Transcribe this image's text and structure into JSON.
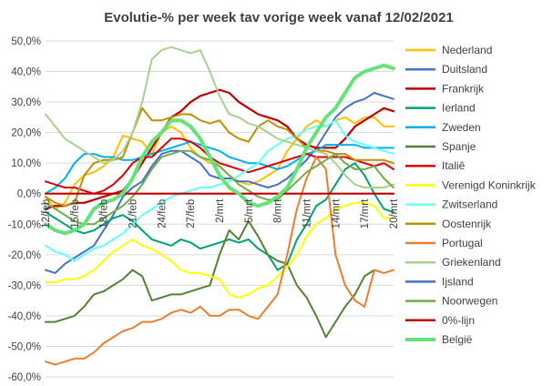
{
  "chart_data": {
    "type": "line",
    "title": "Evolutie-% per week tav vorige week vanaf 12/02/2021",
    "ylim": [
      -60,
      50
    ],
    "yticks": [
      50,
      40,
      30,
      20,
      10,
      0,
      -10,
      -20,
      -30,
      -40,
      -50,
      -60
    ],
    "ytick_labels": [
      "50,0%",
      "40,0%",
      "30,0%",
      "20,0%",
      "10,0%",
      "0,0%",
      "-10,0%",
      "-20,0%",
      "-30,0%",
      "-40,0%",
      "-50,0%",
      "-60,0%"
    ],
    "x_count": 37,
    "x_tick_labels": [
      {
        "index": 0,
        "label": "12/feb"
      },
      {
        "index": 3,
        "label": "15/feb"
      },
      {
        "index": 6,
        "label": "18/feb"
      },
      {
        "index": 9,
        "label": "21/feb"
      },
      {
        "index": 12,
        "label": "24/feb"
      },
      {
        "index": 15,
        "label": "27/feb"
      },
      {
        "index": 18,
        "label": "2/mrt"
      },
      {
        "index": 21,
        "label": "5/mrt"
      },
      {
        "index": 24,
        "label": "8/mrt"
      },
      {
        "index": 27,
        "label": "11/mrt"
      },
      {
        "index": 30,
        "label": "14/mrt"
      },
      {
        "index": 33,
        "label": "17/mrt"
      },
      {
        "index": 36,
        "label": "20/mrt"
      }
    ],
    "grid": true,
    "legend_position": "right",
    "series": [
      {
        "name": "Nederland",
        "color": "#ffc000",
        "width": 2,
        "values": [
          -1,
          -5,
          -3,
          3,
          6,
          7,
          9,
          12,
          19,
          18,
          17,
          13,
          20,
          22,
          20,
          15,
          12,
          10,
          9,
          6,
          4,
          3,
          4,
          6,
          8,
          14,
          18,
          22,
          24,
          22,
          24,
          25,
          23,
          25,
          25,
          22,
          22
        ]
      },
      {
        "name": "Duitsland",
        "color": "#4472c4",
        "width": 2,
        "values": [
          -25,
          -26,
          -23,
          -21,
          -19,
          -17,
          -12,
          -7,
          -1,
          2,
          4,
          9,
          13,
          14,
          14,
          12,
          10,
          6,
          5,
          5,
          4,
          4,
          3,
          2,
          3,
          5,
          8,
          11,
          15,
          20,
          25,
          28,
          30,
          31,
          33,
          32,
          31
        ]
      },
      {
        "name": "Frankrijk",
        "color": "#c00000",
        "width": 2.2,
        "values": [
          -5,
          -4,
          -4,
          -3,
          -3,
          -2,
          -1,
          0,
          1,
          5,
          10,
          15,
          20,
          25,
          27,
          30,
          32,
          33,
          34,
          33,
          30,
          28,
          26,
          25,
          24,
          22,
          18,
          16,
          15,
          15,
          15,
          18,
          22,
          24,
          26,
          28,
          27
        ]
      },
      {
        "name": "Ierland",
        "color": "#00a36c",
        "width": 2,
        "values": [
          -6,
          -8,
          -10,
          -12,
          -13,
          -12,
          -10,
          -8,
          -7,
          -9,
          -12,
          -15,
          -16,
          -17,
          -15,
          -16,
          -18,
          -17,
          -16,
          -15,
          -16,
          -15,
          -18,
          -20,
          -25,
          -23,
          -15,
          -10,
          -4,
          -2,
          3,
          8,
          10,
          6,
          0,
          -5,
          -6
        ]
      },
      {
        "name": "Zweden",
        "color": "#00b0f0",
        "width": 2,
        "values": [
          0,
          2,
          5,
          10,
          13,
          13,
          12,
          12,
          11,
          11,
          12,
          13,
          14,
          15,
          16,
          17,
          16,
          15,
          14,
          12,
          11,
          10,
          10,
          9,
          8,
          9,
          11,
          13,
          14,
          16,
          16,
          16,
          16,
          15,
          15,
          15,
          15
        ]
      },
      {
        "name": "Spanje",
        "color": "#548235",
        "width": 2,
        "values": [
          -42,
          -42,
          -41,
          -40,
          -37,
          -33,
          -32,
          -30,
          -28,
          -25,
          -27,
          -35,
          -34,
          -33,
          -33,
          -32,
          -31,
          -30,
          -20,
          -12,
          -15,
          -9,
          -14,
          -20,
          -22,
          -23,
          -30,
          -34,
          -40,
          -47,
          -42,
          -37,
          -33,
          -27,
          -25,
          null,
          null
        ]
      },
      {
        "name": "Italiê",
        "color": "#e00000",
        "width": 2,
        "values": [
          4,
          3,
          2,
          2,
          1,
          0,
          1,
          3,
          6,
          10,
          12,
          12,
          15,
          18,
          18,
          17,
          15,
          12,
          10,
          9,
          8,
          7,
          8,
          9,
          10,
          11,
          12,
          13,
          12,
          12,
          12,
          12,
          11,
          10,
          9,
          10,
          8
        ]
      },
      {
        "name": "Verenigd Koninkrijk",
        "color": "#ffff00",
        "width": 2,
        "values": [
          -29,
          -29,
          -28,
          -28,
          -27,
          -25,
          -22,
          -19,
          -17,
          -15,
          -17,
          -18,
          -20,
          -22,
          -25,
          -26,
          -26,
          -27,
          -28,
          -33,
          -34,
          -33,
          -31,
          -30,
          -27,
          -24,
          -20,
          -14,
          -10,
          -8,
          -5,
          -4,
          -3,
          -3,
          -4,
          -8,
          -8
        ]
      },
      {
        "name": "Zwitserland",
        "color": "#66ffff",
        "width": 2,
        "values": [
          -17,
          -19,
          -20,
          -22,
          -20,
          -18,
          -17,
          -15,
          -13,
          -10,
          -7,
          -5,
          -3,
          -1,
          0,
          1,
          2,
          2,
          3,
          4,
          6,
          8,
          10,
          14,
          16,
          18,
          19,
          21,
          22,
          22,
          24,
          19,
          17,
          16,
          15,
          14,
          13
        ]
      },
      {
        "name": "Oostenrijk",
        "color": "#bf8f00",
        "width": 2,
        "values": [
          -1,
          -3,
          -4,
          -3,
          6,
          10,
          11,
          11,
          12,
          20,
          28,
          24,
          24,
          25,
          26,
          26,
          24,
          23,
          24,
          20,
          18,
          17,
          22,
          24,
          22,
          21,
          18,
          15,
          14,
          14,
          13,
          13,
          11,
          11,
          11,
          11,
          10
        ]
      },
      {
        "name": "Portugal",
        "color": "#ed7d31",
        "width": 2,
        "values": [
          -55,
          -56,
          -55,
          -54,
          -54,
          -52,
          -49,
          -47,
          -45,
          -44,
          -42,
          -42,
          -41,
          -39,
          -38,
          -39,
          -37,
          -40,
          -40,
          -38,
          -38,
          -40,
          -41,
          -37,
          -33,
          -20,
          -5,
          5,
          12,
          8,
          -20,
          -30,
          -35,
          -37,
          -25,
          -26,
          -25
        ]
      },
      {
        "name": "Griekenland",
        "color": "#a9d18e",
        "width": 2,
        "values": [
          26,
          22,
          18,
          16,
          14,
          12,
          10,
          11,
          14,
          20,
          30,
          44,
          47,
          48,
          47,
          46,
          47,
          40,
          32,
          26,
          25,
          23,
          22,
          20,
          18,
          17,
          16,
          15,
          14,
          13,
          10,
          6,
          3,
          2,
          2,
          2,
          3
        ]
      },
      {
        "name": "Ijsland",
        "color": "#4472c4",
        "width": 2,
        "values": [
          null,
          null,
          null,
          null,
          null,
          null,
          null,
          null,
          null,
          null,
          null,
          null,
          null,
          null,
          null,
          null,
          null,
          null,
          null,
          null,
          null,
          null,
          null,
          null,
          null,
          null,
          null,
          null,
          null,
          null,
          null,
          null,
          null,
          null,
          null,
          null,
          null
        ]
      },
      {
        "name": "Noorwegen",
        "color": "#70ad47",
        "width": 2,
        "values": [
          -3,
          -5,
          -7,
          -9,
          -10,
          -10,
          -8,
          -6,
          -4,
          -1,
          3,
          8,
          12,
          13,
          14,
          14,
          12,
          11,
          9,
          6,
          3,
          1,
          -1,
          -2,
          -2,
          1,
          4,
          7,
          9,
          11,
          13,
          10,
          8,
          8,
          9,
          5,
          2
        ]
      },
      {
        "name": "0%-lijn",
        "color": "#c00000",
        "width": 2.2,
        "values": [
          0,
          0,
          0,
          0,
          0,
          0,
          0,
          0,
          0,
          0,
          0,
          0,
          0,
          0,
          0,
          0,
          0,
          0,
          0,
          0,
          0,
          0,
          0,
          0,
          0,
          0,
          0,
          0,
          0,
          0,
          0,
          0,
          0,
          0,
          0,
          0,
          0
        ]
      },
      {
        "name": "België",
        "color": "#66e27a",
        "width": 4,
        "values": [
          -10,
          -12,
          -13,
          -12,
          -10,
          -5,
          -3,
          -2,
          0,
          5,
          12,
          17,
          20,
          24,
          24,
          22,
          18,
          12,
          6,
          2,
          0,
          -3,
          -4,
          -3,
          -1,
          2,
          8,
          15,
          20,
          25,
          28,
          33,
          38,
          40,
          41,
          42,
          41
        ]
      }
    ]
  }
}
